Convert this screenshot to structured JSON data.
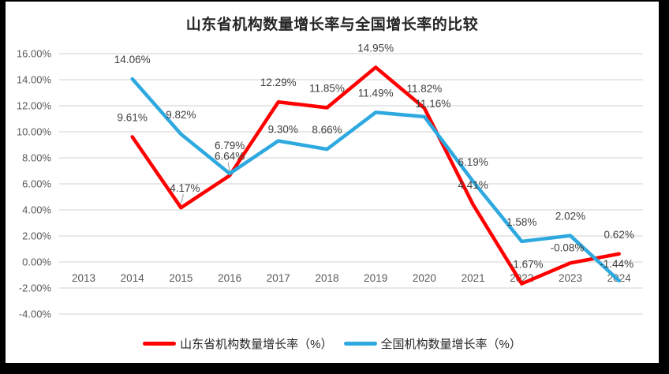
{
  "frame": {
    "background_color": "#000000",
    "surface_color": "#ffffff"
  },
  "chart_data": {
    "type": "line",
    "title": "山东省机构数量增长率与全国增长率的比较",
    "categories": [
      "2013",
      "2014",
      "2015",
      "2016",
      "2017",
      "2018",
      "2019",
      "2020",
      "2021",
      "2022",
      "2023",
      "2024"
    ],
    "y_axis": {
      "min": -4,
      "max": 16,
      "step": 2,
      "tick_labels": [
        "16.00%",
        "14.00%",
        "12.00%",
        "10.00%",
        "8.00%",
        "6.00%",
        "4.00%",
        "2.00%",
        "0.00%",
        "-2.00%",
        "-4.00%"
      ]
    },
    "grid": true,
    "legend_position": "bottom",
    "colors": {
      "gridline": "#D9D9D9",
      "axis_text": "#595959",
      "label_text": "#404040",
      "title_text": "#262626",
      "leader_line": "#A6A6A6"
    },
    "series": [
      {
        "name": "山东省机构数量增长率（%）",
        "color": "#FF0000",
        "values": [
          null,
          9.61,
          4.17,
          6.64,
          12.29,
          11.85,
          14.95,
          11.82,
          4.41,
          -1.67,
          -0.08,
          0.62
        ],
        "labels": [
          "",
          "9.61%",
          "4.17%",
          "6.64%",
          "12.29%",
          "11.85%",
          "14.95%",
          "11.82%",
          "4.41%",
          "-1.67%",
          "-0.08%",
          "0.62%"
        ],
        "label_offsets": {
          "2": {
            "dx": 5,
            "leader": true
          },
          "3": {
            "leader": true
          },
          "9": {
            "dx": 6
          },
          "10": {
            "dx": -4,
            "dy": -15
          }
        }
      },
      {
        "name": "全国机构数量增长率（%）",
        "color": "#2DA9DF",
        "values": [
          null,
          14.06,
          9.82,
          6.79,
          9.3,
          8.66,
          11.49,
          11.16,
          6.19,
          1.58,
          2.02,
          -1.44
        ],
        "labels": [
          "",
          "14.06%",
          "9.82%",
          "6.79%",
          "9.30%",
          "8.66%",
          "11.49%",
          "11.16%",
          "6.19%",
          "1.58%",
          "2.02%",
          "-1.44%"
        ],
        "label_offsets": {
          "3": {
            "dy": -31
          },
          "4": {
            "dx": 6,
            "dy": -10
          },
          "7": {
            "dx": 11,
            "dy": -12
          },
          "11": {
            "dx": -3,
            "dy": -17
          }
        }
      }
    ]
  }
}
